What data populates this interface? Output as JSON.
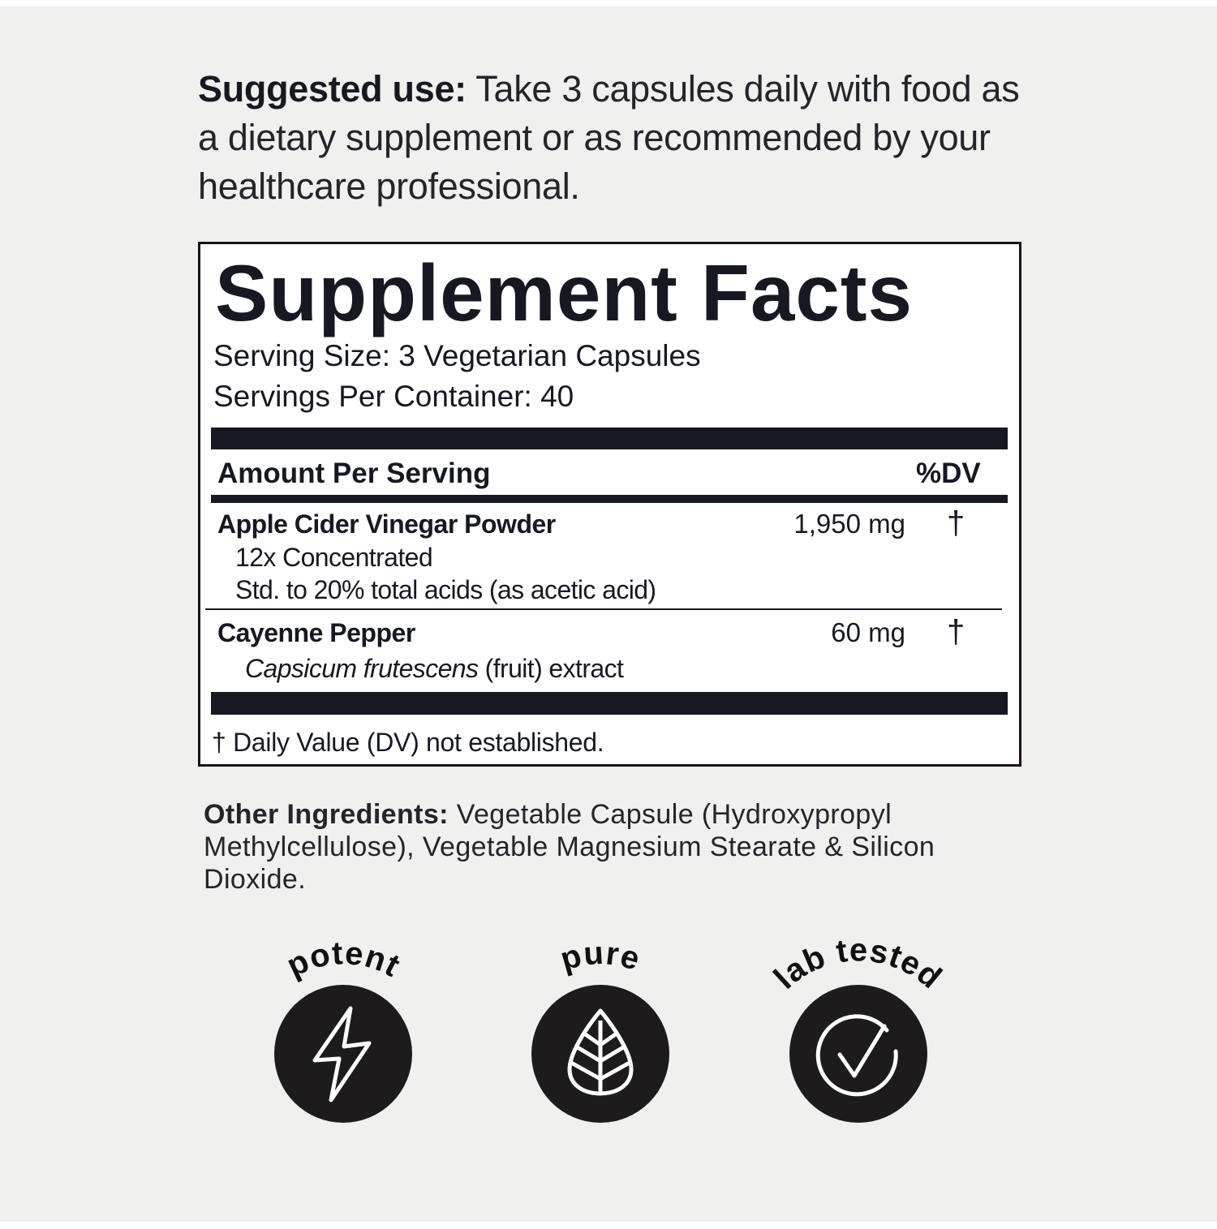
{
  "suggested_use": {
    "label": "Suggested use:",
    "text": " Take 3 capsules daily with food as a dietary supplement or as recommended by your healthcare professional."
  },
  "facts": {
    "title": "Supplement Facts",
    "serving_size": "Serving Size: 3 Vegetarian Capsules",
    "servings_per_container": "Servings Per Container: 40",
    "header_amount": "Amount Per Serving",
    "header_dv": "%DV",
    "rows": [
      {
        "name": "Apple Cider Vinegar Powder",
        "sub1": "12x Concentrated",
        "sub2": "Std. to 20% total acids (as acetic acid)",
        "amount": "1,950 mg",
        "dv": "†"
      },
      {
        "name": "Cayenne Pepper",
        "sub_italic": "Capsicum frutescens",
        "sub_rest": " (fruit) extract",
        "amount": "60 mg",
        "dv": "†"
      }
    ],
    "footnote": "† Daily Value (DV) not established."
  },
  "other_ingredients": {
    "label": "Other Ingredients:",
    "text": " Vegetable Capsule (Hydroxypropyl Methylcellulose), Vegetable Magnesium Stearate & Silicon Dioxide."
  },
  "badges": [
    {
      "label": "potent",
      "icon": "lightning-bolt-icon"
    },
    {
      "label": "pure",
      "icon": "leaf-icon"
    },
    {
      "label": "lab tested",
      "icon": "check-circle-icon"
    }
  ]
}
